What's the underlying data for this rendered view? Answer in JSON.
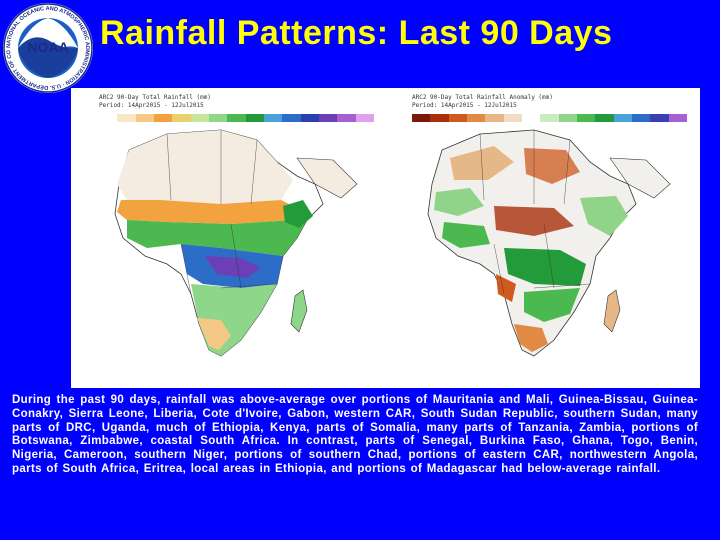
{
  "logo": {
    "text": "NOAA",
    "ring_text": "NATIONAL OCEANIC AND ATMOSPHERIC ADMINISTRATION · U.S. DEPARTMENT OF COMMERCE"
  },
  "title": "Rainfall Patterns: Last 90 Days",
  "left_map": {
    "header": "ARC2 90-Day Total Rainfall (mm)",
    "period": "Period: 14Apr2015 - 12Jul2015",
    "scale_colors": [
      "#ffffff",
      "#f7e7c5",
      "#f5c985",
      "#f2a340",
      "#e9d16b",
      "#c8e699",
      "#8dd68a",
      "#4cb950",
      "#239b3a",
      "#4aa3d8",
      "#2c6dc7",
      "#2a3fb0",
      "#6b3fb5",
      "#a85fd0",
      "#e0a0f0"
    ]
  },
  "right_map": {
    "header": "ARC2 90-Day Total Rainfall Anomaly (mm)",
    "period": "Period: 14Apr2015 - 12Jul2015",
    "scale_colors": [
      "#7a1a0a",
      "#a8300c",
      "#cf5a1e",
      "#e08a45",
      "#e6b888",
      "#f2dcc2",
      "#ffffff",
      "#c9ecc0",
      "#8fd488",
      "#4cb950",
      "#239b3a",
      "#4aa3d8",
      "#2c6dc7",
      "#3b3fb0",
      "#a85fd0"
    ]
  },
  "description": "During the past 90 days, rainfall was above-average over portions of Mauritania and Mali, Guinea-Bissau, Guinea-Conakry, Sierra Leone, Liberia, Cote d'Ivoire, Gabon, western CAR, South Sudan Republic, southern Sudan, many parts of DRC, Uganda, much of Ethiopia, Kenya, parts of Somalia, many parts of Tanzania, Zambia, portions of Botswana, Zimbabwe, coastal South Africa. In contrast, parts of Senegal, Burkina Faso, Ghana, Togo, Benin, Nigeria, Cameroon, southern Niger, portions of southern Chad, portions of eastern CAR, northwestern Angola, parts of South Africa, Eritrea, local areas in Ethiopia, and portions of Madagascar had below-average rainfall."
}
